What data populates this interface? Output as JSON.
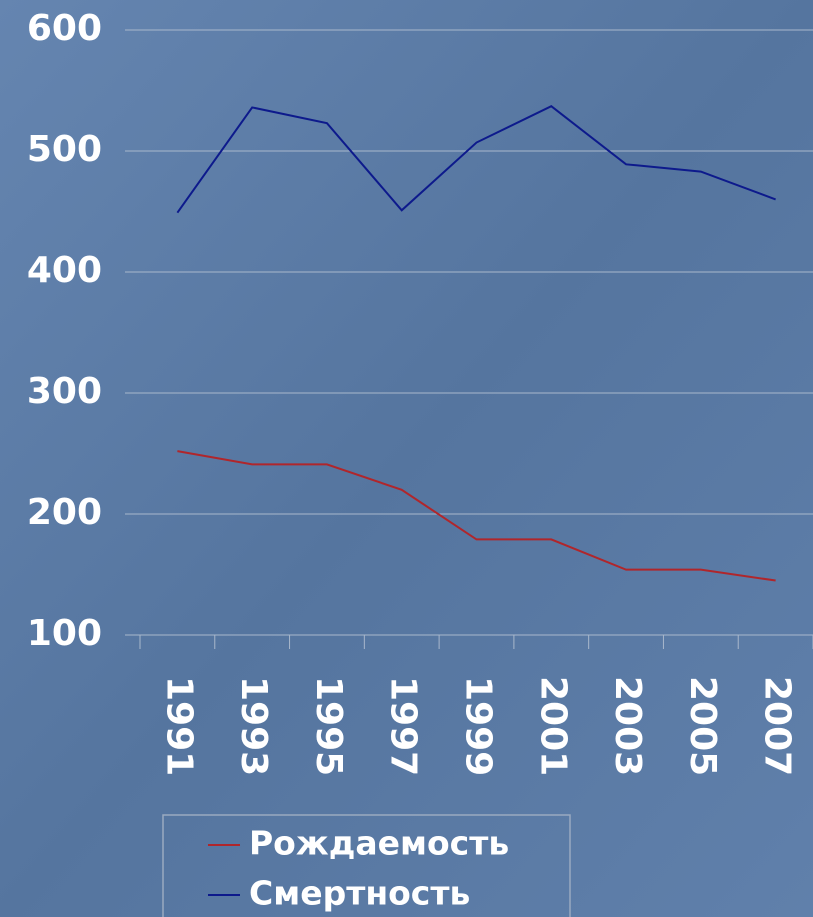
{
  "chart_data": {
    "type": "line",
    "categories": [
      "1991",
      "1993",
      "1995",
      "1997",
      "1999",
      "2001",
      "2003",
      "2005",
      "2007"
    ],
    "series": [
      {
        "name": "Рождаемость",
        "color": "#b0262b",
        "values": [
          252,
          241,
          241,
          220,
          179,
          179,
          154,
          154,
          145
        ]
      },
      {
        "name": "Смертность",
        "color": "#0d1a8c",
        "values": [
          449,
          536,
          523,
          451,
          507,
          537,
          489,
          483,
          460
        ]
      }
    ],
    "ylim": [
      100,
      600
    ],
    "yticks": [
      100,
      200,
      300,
      400,
      500,
      600
    ],
    "grid": true
  }
}
